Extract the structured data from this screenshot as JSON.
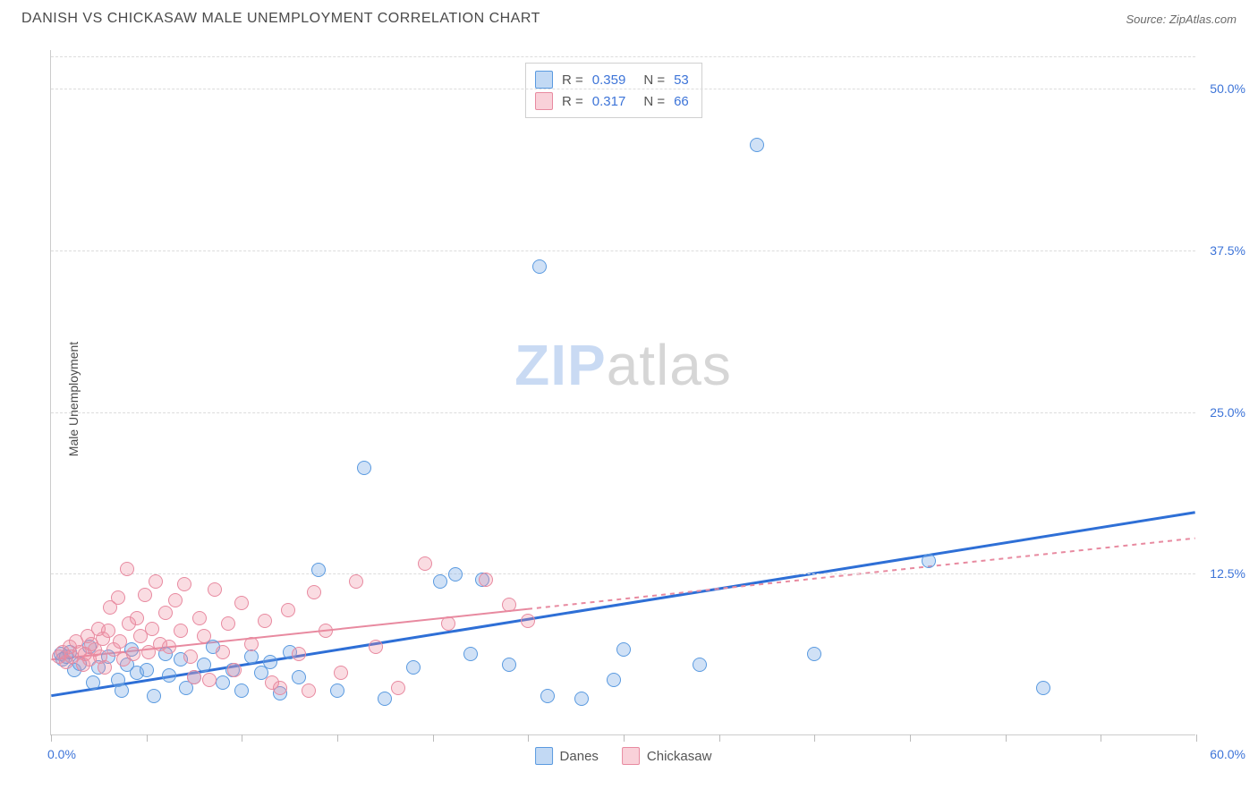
{
  "header": {
    "title": "DANISH VS CHICKASAW MALE UNEMPLOYMENT CORRELATION CHART",
    "source_label": "Source: ",
    "source_name": "ZipAtlas.com"
  },
  "chart": {
    "type": "scatter",
    "ylabel": "Male Unemployment",
    "xlim": [
      0,
      60
    ],
    "ylim": [
      0,
      53
    ],
    "xtick_positions": [
      0,
      5,
      10,
      15,
      20,
      25,
      30,
      35,
      40,
      45,
      50,
      55,
      60
    ],
    "xlabels": {
      "min": "0.0%",
      "max": "60.0%"
    },
    "y_gridlines": [
      {
        "v": 52.5,
        "hide_label": true
      },
      {
        "v": 50.0,
        "label": "50.0%"
      },
      {
        "v": 37.5,
        "label": "37.5%"
      },
      {
        "v": 25.0,
        "label": "25.0%"
      },
      {
        "v": 12.5,
        "label": "12.5%"
      }
    ],
    "background_color": "#ffffff",
    "grid_color": "#dcdcdc",
    "series": [
      {
        "name": "Danes",
        "color_fill": "rgba(120,170,230,0.35)",
        "color_stroke": "#5a9ae0",
        "marker_radius": 8,
        "R": 0.359,
        "N": 53,
        "trend": {
          "x1": 0,
          "y1": 3.0,
          "x2": 60,
          "y2": 17.2,
          "stroke": "#2e6fd6",
          "width": 3,
          "dash": "none"
        },
        "points": [
          [
            0.5,
            6.2
          ],
          [
            0.6,
            5.8
          ],
          [
            0.8,
            6.0
          ],
          [
            1.0,
            6.4
          ],
          [
            1.2,
            5.0
          ],
          [
            1.5,
            5.5
          ],
          [
            2.0,
            6.8
          ],
          [
            2.2,
            4.0
          ],
          [
            2.5,
            5.2
          ],
          [
            3.0,
            6.0
          ],
          [
            3.5,
            4.2
          ],
          [
            3.7,
            3.4
          ],
          [
            4.0,
            5.4
          ],
          [
            4.2,
            6.6
          ],
          [
            4.5,
            4.8
          ],
          [
            5.0,
            5.0
          ],
          [
            5.4,
            3.0
          ],
          [
            6.0,
            6.2
          ],
          [
            6.2,
            4.6
          ],
          [
            6.8,
            5.8
          ],
          [
            7.1,
            3.6
          ],
          [
            7.5,
            4.4
          ],
          [
            8.0,
            5.4
          ],
          [
            8.5,
            6.8
          ],
          [
            9.0,
            4.0
          ],
          [
            9.5,
            5.0
          ],
          [
            10.0,
            3.4
          ],
          [
            10.5,
            6.0
          ],
          [
            11.0,
            4.8
          ],
          [
            11.5,
            5.6
          ],
          [
            12.0,
            3.2
          ],
          [
            12.5,
            6.4
          ],
          [
            13.0,
            4.4
          ],
          [
            14.0,
            12.7
          ],
          [
            15.0,
            3.4
          ],
          [
            16.4,
            20.6
          ],
          [
            17.5,
            2.8
          ],
          [
            19.0,
            5.2
          ],
          [
            20.4,
            11.8
          ],
          [
            21.2,
            12.4
          ],
          [
            22.0,
            6.2
          ],
          [
            22.6,
            12.0
          ],
          [
            24.0,
            5.4
          ],
          [
            25.6,
            36.2
          ],
          [
            26.0,
            3.0
          ],
          [
            27.8,
            2.8
          ],
          [
            29.5,
            4.2
          ],
          [
            30.0,
            6.6
          ],
          [
            34.0,
            5.4
          ],
          [
            37.0,
            45.6
          ],
          [
            40.0,
            6.2
          ],
          [
            46.0,
            13.4
          ],
          [
            52.0,
            3.6
          ]
        ]
      },
      {
        "name": "Chickasaw",
        "color_fill": "rgba(240,140,160,0.30)",
        "color_stroke": "#e88aa0",
        "marker_radius": 8,
        "R": 0.317,
        "N": 66,
        "trend": {
          "x1": 0,
          "y1": 5.8,
          "x2": 60,
          "y2": 15.2,
          "stroke": "#e88aa0",
          "width": 2,
          "dash": "5,5",
          "solid_until_x": 25
        },
        "points": [
          [
            0.4,
            6.0
          ],
          [
            0.6,
            6.4
          ],
          [
            0.8,
            5.6
          ],
          [
            1.0,
            6.8
          ],
          [
            1.1,
            6.0
          ],
          [
            1.3,
            7.2
          ],
          [
            1.5,
            6.4
          ],
          [
            1.7,
            5.4
          ],
          [
            1.8,
            6.2
          ],
          [
            1.9,
            7.6
          ],
          [
            2.0,
            5.8
          ],
          [
            2.1,
            7.0
          ],
          [
            2.3,
            6.6
          ],
          [
            2.5,
            8.2
          ],
          [
            2.6,
            6.0
          ],
          [
            2.7,
            7.4
          ],
          [
            2.8,
            5.2
          ],
          [
            3.0,
            8.0
          ],
          [
            3.1,
            9.8
          ],
          [
            3.3,
            6.6
          ],
          [
            3.5,
            10.6
          ],
          [
            3.6,
            7.2
          ],
          [
            3.8,
            5.8
          ],
          [
            4.0,
            12.8
          ],
          [
            4.1,
            8.6
          ],
          [
            4.3,
            6.2
          ],
          [
            4.5,
            9.0
          ],
          [
            4.7,
            7.6
          ],
          [
            4.9,
            10.8
          ],
          [
            5.1,
            6.4
          ],
          [
            5.3,
            8.2
          ],
          [
            5.5,
            11.8
          ],
          [
            5.7,
            7.0
          ],
          [
            6.0,
            9.4
          ],
          [
            6.2,
            6.8
          ],
          [
            6.5,
            10.4
          ],
          [
            6.8,
            8.0
          ],
          [
            7.0,
            11.6
          ],
          [
            7.3,
            6.0
          ],
          [
            7.5,
            4.4
          ],
          [
            7.8,
            9.0
          ],
          [
            8.0,
            7.6
          ],
          [
            8.3,
            4.2
          ],
          [
            8.6,
            11.2
          ],
          [
            9.0,
            6.4
          ],
          [
            9.3,
            8.6
          ],
          [
            9.6,
            5.0
          ],
          [
            10.0,
            10.2
          ],
          [
            10.5,
            7.0
          ],
          [
            11.2,
            8.8
          ],
          [
            11.6,
            4.0
          ],
          [
            12.0,
            3.6
          ],
          [
            12.4,
            9.6
          ],
          [
            13.0,
            6.2
          ],
          [
            13.5,
            3.4
          ],
          [
            13.8,
            11.0
          ],
          [
            14.4,
            8.0
          ],
          [
            15.2,
            4.8
          ],
          [
            16.0,
            11.8
          ],
          [
            17.0,
            6.8
          ],
          [
            18.2,
            3.6
          ],
          [
            19.6,
            13.2
          ],
          [
            20.8,
            8.6
          ],
          [
            22.8,
            12.0
          ],
          [
            24.0,
            10.0
          ],
          [
            25.0,
            8.8
          ]
        ]
      }
    ],
    "legend_top": {
      "rows": [
        {
          "swatch": "blue",
          "r_label": "R =",
          "r_val": "0.359",
          "n_label": "N =",
          "n_val": "53"
        },
        {
          "swatch": "pink",
          "r_label": "R =",
          "r_val": "0.317",
          "n_label": "N =",
          "n_val": "66"
        }
      ]
    },
    "legend_bottom": [
      {
        "swatch": "blue",
        "label": "Danes"
      },
      {
        "swatch": "pink",
        "label": "Chickasaw"
      }
    ],
    "watermark": {
      "zip": "ZIP",
      "atlas": "atlas"
    }
  }
}
